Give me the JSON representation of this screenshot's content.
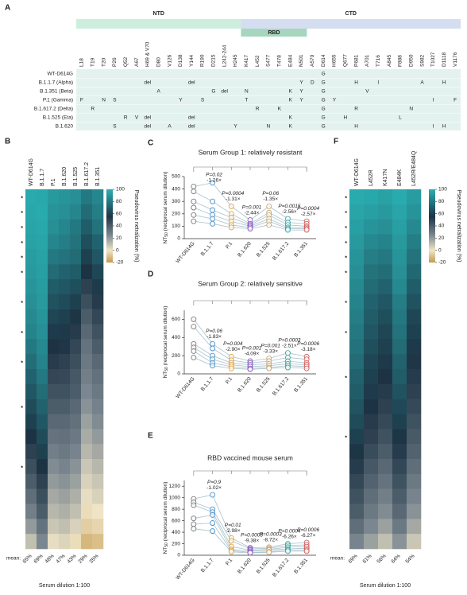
{
  "panel_a": {
    "letter": "A",
    "domains": [
      "NTD",
      "RBD",
      "CTD"
    ],
    "positions": [
      "L18",
      "T19",
      "T20",
      "P26",
      "Q52",
      "A67",
      "H69 & V70",
      "D80",
      "V126",
      "D138",
      "Y144",
      "R190",
      "D215",
      "L242-244",
      "H245",
      "K417",
      "L452",
      "S477",
      "T478",
      "E484",
      "N501",
      "A570",
      "D614",
      "H655",
      "Q677",
      "P681",
      "A701",
      "T716",
      "A845",
      "F888",
      "D950",
      "S982",
      "T1027",
      "D1118",
      "V1176"
    ],
    "rows": [
      {
        "name": "WT-D614G",
        "cells": {
          "D614": "G"
        }
      },
      {
        "name": "B.1.1.7 (Alpha)",
        "cells": {
          "H69 & V70": "del",
          "Y144": "del",
          "N501": "Y",
          "A570": "D",
          "D614": "G",
          "P681": "H",
          "T716": "I",
          "S982": "A",
          "D1118": "H"
        }
      },
      {
        "name": "B.1.351 (Beta)",
        "cells": {
          "D80": "A",
          "D215": "G",
          "L242-244": "del",
          "K417": "N",
          "E484": "K",
          "N501": "Y",
          "D614": "G",
          "A701": "V"
        }
      },
      {
        "name": "P.1 (Gamma)",
        "cells": {
          "L18": "F",
          "T20": "N",
          "P26": "S",
          "D138": "Y",
          "R190": "S",
          "K417": "T",
          "E484": "K",
          "N501": "Y",
          "D614": "G",
          "H655": "Y",
          "T1027": "I",
          "V1176": "F"
        }
      },
      {
        "name": "B.1.617.2 (Delta)",
        "cells": {
          "T19": "R",
          "L452": "R",
          "T478": "K",
          "D614": "G",
          "P681": "R",
          "D950": "N"
        }
      },
      {
        "name": "B.1.525 (Eta)",
        "cells": {
          "Q52": "R",
          "A67": "V",
          "H69 & V70": "del",
          "Y144": "del",
          "E484": "K",
          "D614": "G",
          "Q677": "H",
          "F888": "L"
        }
      },
      {
        "name": "B.1.620",
        "cells": {
          "P26": "S",
          "H69 & V70": "del",
          "V126": "A",
          "Y144": "del",
          "H245": "Y",
          "S477": "N",
          "E484": "K",
          "D614": "G",
          "P681": "H",
          "T1027": "I",
          "D1118": "H"
        }
      }
    ]
  },
  "panel_b": {
    "letter": "B",
    "columns": [
      "WT-D614G",
      "B.1.1.7",
      "P.1",
      "B.1.620",
      "B.1.525",
      "B.1.617.2",
      "B.1.351"
    ],
    "rows": [
      [
        98,
        97,
        92,
        90,
        88,
        80,
        85
      ],
      [
        97,
        98,
        90,
        88,
        85,
        75,
        82
      ],
      [
        96,
        97,
        88,
        85,
        80,
        70,
        78
      ],
      [
        95,
        96,
        85,
        82,
        78,
        65,
        72
      ],
      [
        93,
        95,
        80,
        78,
        75,
        60,
        68
      ],
      [
        92,
        94,
        75,
        72,
        70,
        55,
        62
      ],
      [
        90,
        93,
        70,
        68,
        65,
        50,
        58
      ],
      [
        88,
        92,
        66,
        64,
        60,
        45,
        52
      ],
      [
        86,
        90,
        62,
        60,
        56,
        40,
        48
      ],
      [
        84,
        88,
        58,
        57,
        52,
        36,
        44
      ],
      [
        80,
        86,
        55,
        54,
        48,
        32,
        40
      ],
      [
        76,
        84,
        52,
        50,
        45,
        30,
        36
      ],
      [
        72,
        80,
        48,
        47,
        42,
        28,
        33
      ],
      [
        68,
        76,
        44,
        44,
        40,
        25,
        30
      ],
      [
        64,
        72,
        40,
        40,
        36,
        22,
        27
      ],
      [
        60,
        68,
        36,
        36,
        33,
        18,
        24
      ],
      [
        55,
        64,
        32,
        33,
        30,
        15,
        20
      ],
      [
        50,
        60,
        28,
        30,
        26,
        12,
        16
      ],
      [
        45,
        55,
        24,
        26,
        22,
        8,
        12
      ],
      [
        40,
        50,
        20,
        22,
        18,
        5,
        8
      ],
      [
        34,
        45,
        16,
        18,
        14,
        2,
        5
      ],
      [
        28,
        40,
        12,
        14,
        10,
        -2,
        0
      ],
      [
        20,
        32,
        8,
        10,
        5,
        -6,
        -4
      ],
      [
        10,
        25,
        2,
        4,
        -2,
        -12,
        -10
      ]
    ],
    "star": "*",
    "starred_rows": [
      0,
      1,
      2,
      3,
      4,
      5,
      7,
      9,
      11,
      14,
      18
    ],
    "colorbar_label": "Pseudovirus netralization (%)",
    "colorbar_lim": [
      -20,
      100
    ],
    "colorbar_ticks": [
      100,
      80,
      60,
      40,
      20,
      0,
      -20
    ],
    "mean_label": "mean:",
    "means": [
      "65%",
      "69%",
      "48%",
      "47%",
      "43%",
      "29%",
      "35%"
    ],
    "xlabel": "Serum dilution 1:100"
  },
  "line_common": {
    "categories": [
      "WT-D614G",
      "B.1.1.7",
      "P.1",
      "B.1.620",
      "B.1.525",
      "B.1.617.2",
      "B.1.351"
    ],
    "colors": [
      "#7a7a7a",
      "#4a90c8",
      "#e0a040",
      "#8a5cc0",
      "#c8a878",
      "#3aa8a0",
      "#d06060"
    ],
    "y_label": "NT",
    "y_label_sub": "50",
    "y_label_rest": " (reciprocal serum dilution)"
  },
  "panel_c": {
    "letter": "C",
    "title": "Serum Group 1: relatively resistant",
    "ylim": [
      0,
      500
    ],
    "yticks": [
      0,
      100,
      200,
      300,
      400,
      500
    ],
    "sera": [
      [
        420,
        450,
        260,
        150,
        260,
        160,
        140
      ],
      [
        380,
        300,
        200,
        120,
        210,
        130,
        120
      ],
      [
        300,
        230,
        170,
        110,
        190,
        110,
        100
      ],
      [
        250,
        190,
        140,
        100,
        160,
        90,
        90
      ],
      [
        190,
        160,
        110,
        90,
        140,
        80,
        80
      ],
      [
        140,
        120,
        90,
        80,
        110,
        70,
        70
      ]
    ],
    "comparisons": [
      {
        "p": "P=0.02",
        "fold": "-1.26×"
      },
      {
        "p": "P=0.0004",
        "fold": "-1.31×"
      },
      {
        "p": "P=0.001",
        "fold": "-2.44×"
      },
      {
        "p": "P=0.06",
        "fold": "-1.35×"
      },
      {
        "p": "P=0.0015",
        "fold": "-2.56×"
      },
      {
        "p": "P=0.0004",
        "fold": "-2.57×"
      }
    ]
  },
  "panel_d": {
    "letter": "D",
    "title": "Serum Group 2: relatively sensitive",
    "ylim": [
      0,
      700
    ],
    "yticks": [
      0,
      200,
      400,
      600
    ],
    "sera": [
      [
        600,
        330,
        190,
        140,
        170,
        230,
        190
      ],
      [
        520,
        280,
        150,
        120,
        140,
        180,
        160
      ],
      [
        330,
        200,
        120,
        100,
        110,
        140,
        120
      ],
      [
        290,
        160,
        100,
        80,
        90,
        110,
        100
      ],
      [
        250,
        120,
        80,
        60,
        70,
        90,
        80
      ],
      [
        180,
        90,
        60,
        50,
        60,
        70,
        60
      ]
    ],
    "comparisons": [
      {
        "p": "P=0.06",
        "fold": "-1.83×"
      },
      {
        "p": "P=0.004",
        "fold": "-2.90×"
      },
      {
        "p": "P=0.001",
        "fold": "-4.09×"
      },
      {
        "p": "P=0.001",
        "fold": "-3.33×"
      },
      {
        "p": "P=0.0003",
        "fold": "-2.51×"
      },
      {
        "p": "P=0.0006",
        "fold": "-3.18×"
      }
    ]
  },
  "panel_e": {
    "letter": "E",
    "title": "RBD vaccined mouse serum",
    "ylim": [
      0,
      1300
    ],
    "yticks": [
      0,
      200,
      400,
      600,
      800,
      1000,
      1200
    ],
    "sera": [
      [
        980,
        1050,
        300,
        130,
        140,
        200,
        220
      ],
      [
        920,
        800,
        250,
        110,
        120,
        170,
        180
      ],
      [
        870,
        750,
        150,
        90,
        100,
        140,
        150
      ],
      [
        640,
        700,
        100,
        70,
        90,
        110,
        120
      ],
      [
        540,
        560,
        80,
        50,
        60,
        90,
        90
      ],
      [
        460,
        420,
        60,
        40,
        50,
        70,
        70
      ]
    ],
    "comparisons": [
      {
        "p": "P=0.9",
        "fold": "-1.02×"
      },
      {
        "p": "P=0.01",
        "fold": "-2.98×"
      },
      {
        "p": "P=0.0003",
        "fold": "-9.38×"
      },
      {
        "p": "P=0.0003",
        "fold": "-8.72×"
      },
      {
        "p": "P=0.0004",
        "fold": "-6.26×"
      },
      {
        "p": "P=0.0006",
        "fold": "-6.27×"
      }
    ]
  },
  "panel_f": {
    "letter": "F",
    "columns": [
      "WT-D614G",
      "L452R",
      "K417N",
      "E484K",
      "L452R/E484Q"
    ],
    "rows": [
      [
        98,
        97,
        95,
        98,
        93
      ],
      [
        96,
        94,
        92,
        96,
        90
      ],
      [
        94,
        90,
        88,
        94,
        86
      ],
      [
        92,
        86,
        84,
        92,
        82
      ],
      [
        90,
        82,
        80,
        90,
        78
      ],
      [
        88,
        78,
        76,
        88,
        74
      ],
      [
        86,
        75,
        72,
        86,
        70
      ],
      [
        84,
        72,
        68,
        82,
        66
      ],
      [
        82,
        70,
        65,
        80,
        62
      ],
      [
        80,
        68,
        62,
        78,
        60
      ],
      [
        78,
        65,
        60,
        75,
        57
      ],
      [
        75,
        62,
        57,
        72,
        54
      ],
      [
        72,
        60,
        55,
        70,
        52
      ],
      [
        70,
        58,
        52,
        66,
        50
      ],
      [
        67,
        55,
        50,
        63,
        47
      ],
      [
        64,
        52,
        47,
        60,
        44
      ],
      [
        60,
        50,
        44,
        56,
        41
      ],
      [
        56,
        46,
        40,
        52,
        38
      ],
      [
        52,
        42,
        36,
        48,
        34
      ],
      [
        48,
        38,
        32,
        44,
        30
      ],
      [
        44,
        34,
        28,
        40,
        26
      ],
      [
        40,
        30,
        24,
        36,
        22
      ],
      [
        34,
        25,
        18,
        30,
        16
      ],
      [
        26,
        18,
        10,
        22,
        8
      ]
    ],
    "star": "*",
    "starred_rows": [
      0,
      1,
      2,
      3,
      4,
      5,
      7,
      9,
      12,
      16
    ],
    "colorbar_label": "Pseudovirus netralization (%)",
    "colorbar_lim": [
      -20,
      100
    ],
    "colorbar_ticks": [
      100,
      80,
      60,
      40,
      20,
      0,
      -20
    ],
    "mean_label": "mean:",
    "means": [
      "69%",
      "61%",
      "56%",
      "64%",
      "54%"
    ],
    "xlabel": "Serum dilution 1:100"
  }
}
